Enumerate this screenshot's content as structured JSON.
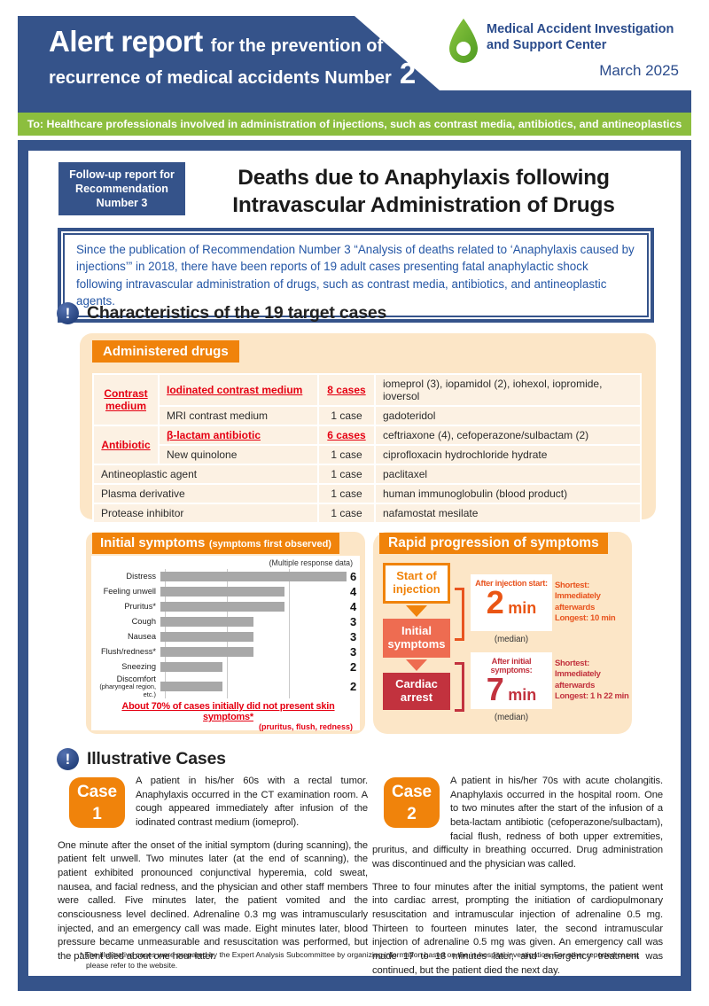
{
  "header": {
    "ribbon": {
      "big": "Alert report",
      "rest": "for the prevention of",
      "line2": "recurrence of medical accidents Number",
      "number": "2"
    },
    "org": {
      "line1": "Medical Accident Investigation",
      "line2": "and Support Center"
    },
    "date": "March 2025",
    "audience": "To: Healthcare professionals involved in administration of injections, such as contrast media, antibiotics, and antineoplastics",
    "colors": {
      "brand_blue": "#35538A",
      "brand_green": "#8CBE3E",
      "accent_orange": "#F0830B",
      "alert_red": "#E50012"
    }
  },
  "report": {
    "follow_up": {
      "line1": "Follow-up report for",
      "line2": "Recommendation",
      "line3": "Number 3"
    },
    "title": {
      "line1": "Deaths due to Anaphylaxis following",
      "line2": "Intravascular Administration of Drugs"
    },
    "intro": "Since the publication of Recommendation Number 3 “Analysis of deaths related to ‘Anaphylaxis caused by injections’” in 2018, there have been reports of 19 adult cases presenting fatal anaphylactic shock following intravascular administration of drugs, such as contrast media, antibiotics, and antineoplastic agents."
  },
  "characteristics": {
    "heading": "Characteristics of the 19 target cases",
    "drugs_table": {
      "title": "Administered drugs",
      "rows": [
        {
          "category": "Contrast medium",
          "sub": "Iodinated contrast medium",
          "cases": "8 cases",
          "drugs": "iomeprol (3), iopamidol (2), iohexol, iopromide, ioversol"
        },
        {
          "sub": "MRI contrast medium",
          "cases": "1 case",
          "drugs": "gadoteridol"
        },
        {
          "category": "Antibiotic",
          "sub": "β-lactam antibiotic",
          "cases": "6 cases",
          "drugs": "ceftriaxone (4), cefoperazone/sulbactam (2)"
        },
        {
          "sub": "New quinolone",
          "cases": "1 case",
          "drugs": "ciprofloxacin hydrochloride hydrate"
        },
        {
          "category": "Antineoplastic agent",
          "cases": "1 case",
          "drugs": "paclitaxel"
        },
        {
          "category": "Plasma derivative",
          "cases": "1 case",
          "drugs": "human immunoglobulin (blood product)"
        },
        {
          "category": "Protease inhibitor",
          "cases": "1 case",
          "drugs": "nafamostat mesilate"
        }
      ]
    }
  },
  "chart_data": {
    "type": "bar",
    "orientation": "horizontal",
    "title": "Initial symptoms",
    "title_suffix": "(symptoms first observed)",
    "note": "(Multiple response data)",
    "categories": [
      "Distress",
      "Feeling unwell",
      "Pruritus*",
      "Cough",
      "Nausea",
      "Flush/redness*",
      "Sneezing",
      "Discomfort"
    ],
    "sublabels": [
      "",
      "",
      "",
      "",
      "",
      "",
      "",
      "(pharyngeal region, etc.)"
    ],
    "values": [
      6,
      4,
      4,
      3,
      3,
      3,
      2,
      2
    ],
    "xlim": [
      0,
      6
    ],
    "gridlines": [
      0,
      2,
      4
    ],
    "bar_color": "#A8A8A8",
    "caption": "About 70% of cases initially did not present skin symptoms*",
    "caption_sub": "(pruritus, flush, redness)"
  },
  "rapid": {
    "title": "Rapid progression of symptoms",
    "flow": {
      "start": "Start of injection",
      "middle": "Initial symptoms",
      "end": "Cardiac arrest"
    },
    "intervals": [
      {
        "label": "After injection start:",
        "value": "2",
        "unit": "min",
        "median": "(median)",
        "shortest": "Shortest: Immediately afterwards",
        "longest": "Longest: 10 min"
      },
      {
        "label": "After initial symptoms:",
        "value": "7",
        "unit": "min",
        "median": "(median)",
        "shortest": "Shortest: Immediately afterwards",
        "longest": "Longest: 1 h 22 min"
      }
    ]
  },
  "cases": {
    "heading": "Illustrative Cases",
    "items": [
      {
        "badge_word": "Case",
        "badge_number": "1",
        "intro": "A patient in his/her 60s with a rectal tumor. Anaphylaxis occurred in the CT examination room. A cough appeared immediately after infusion of the iodinated contrast medium (iomeprol).",
        "body": "One minute after the onset of the initial symptom (during scanning), the patient felt unwell. Two minutes later (at the end of scanning), the patient exhibited pronounced conjunctival hyperemia, cold sweat, nausea, and facial redness, and the physician and other staff members were called. Five minutes later, the patient vomited and the consciousness level declined. Adrenaline 0.3 mg was intramuscularly injected, and an emergency call was made. Eight minutes later, blood pressure became unmeasurable and resuscitation was performed, but the patient died about one hour later."
      },
      {
        "badge_word": "Case",
        "badge_number": "2",
        "intro": "A patient in his/her 70s with acute cholangitis. Anaphylaxis occurred in the hospital room. One to two minutes after the start of the infusion of a beta-lactam antibiotic (cefoperazone/sulbactam), facial flush, redness of both upper extremities, pruritus, and difficulty in breathing occurred. Drug administration was discontinued and the physician was called.",
        "body": "Three to four minutes after the initial symptoms, the patient went into cardiac arrest, prompting the initiation of cardiopulmonary resuscitation and intramuscular injection of adrenaline 0.5 mg. Thirteen to fourteen minutes later, the second intramuscular injection of adrenaline 0.5 mg was given. An emergency call was made 17 to 18 minutes later, and emergency treatment was continued, but the patient died the next day."
      }
    ],
    "footnote": "* The illustrative cases were prepared by the Expert Analysis Subcommittee by organizing information based on the in-hospital investigation. For other reported cases, please refer to the website."
  }
}
